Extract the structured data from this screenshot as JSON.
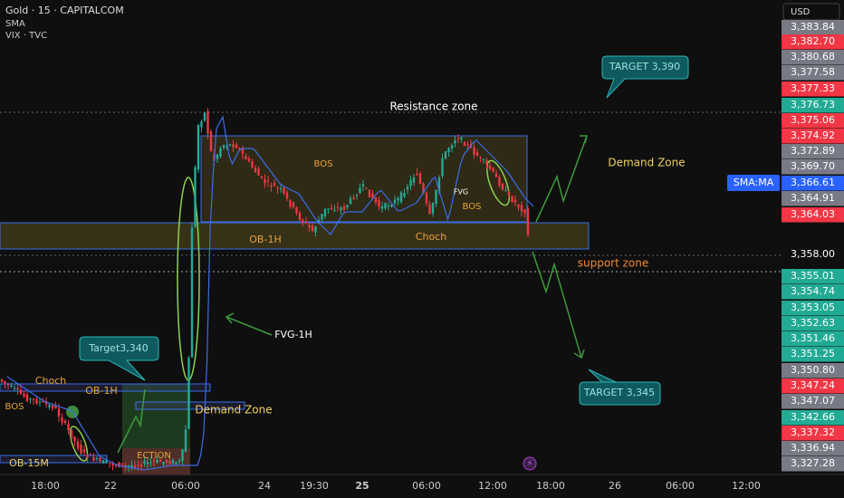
{
  "header": {
    "symbol": "Gold · 15 · CAPITALCOM",
    "indicators": [
      "SMA",
      "VIX · TVC"
    ]
  },
  "annotations": [
    {
      "text": "Resistance zone",
      "color": "#ffffff"
    },
    {
      "text": "BOS",
      "color": "#e8a23a"
    },
    {
      "text": "Demand Zone",
      "color": "#f0d060"
    },
    {
      "text": "FVG",
      "color": "#ffffff"
    },
    {
      "text": "BOS",
      "color": "#e8a23a"
    },
    {
      "text": "OB-1H",
      "color": "#e8a23a"
    },
    {
      "text": "Choch",
      "color": "#e8a23a"
    },
    {
      "text": "support zone",
      "color": "#f08a30"
    },
    {
      "text": "FVG-1H",
      "color": "#ffffff"
    },
    {
      "text": "Choch",
      "color": "#e8a23a"
    },
    {
      "text": "OB-1H",
      "color": "#e8a23a"
    },
    {
      "text": "BOS",
      "color": "#e8a23a"
    },
    {
      "text": "Demand Zone",
      "color": "#f0d060"
    },
    {
      "text": "OB-15M",
      "color": "#f0d060"
    },
    {
      "text": "ECTION",
      "color": "#e8a23a"
    }
  ],
  "callouts": [
    "TARGET 3,390",
    "Target3,340",
    "TARGET 3,345"
  ],
  "indicator_tag": "SMA:MA",
  "price_axis": {
    "currency": "USD",
    "labels": [
      {
        "text": "3,383.84",
        "color": "#787b86"
      },
      {
        "text": "3,382.70",
        "color": "#f23645"
      },
      {
        "text": "3,380.68",
        "color": "#787b86"
      },
      {
        "text": "3,377.58",
        "color": "#787b86"
      },
      {
        "text": "3,377.33",
        "color": "#f23645"
      },
      {
        "text": "3,376.73",
        "color": "#22ab94"
      },
      {
        "text": "3,375.06",
        "color": "#f23645"
      },
      {
        "text": "3,374.92",
        "color": "#f23645"
      },
      {
        "text": "3,372.89",
        "color": "#787b86"
      },
      {
        "text": "3,369.70",
        "color": "#787b86"
      },
      {
        "text": "3,366.61",
        "color": "#2962ff"
      },
      {
        "text": "3,364.91",
        "color": "#787b86"
      },
      {
        "text": "3,364.03",
        "color": "#f23645"
      },
      {
        "text": "3,358.00",
        "color": "#0f0f0f"
      },
      {
        "text": "3,355.01",
        "color": "#22ab94"
      },
      {
        "text": "3,354.74",
        "color": "#22ab94"
      },
      {
        "text": "3,353.05",
        "color": "#22ab94"
      },
      {
        "text": "3,352.63",
        "color": "#22ab94"
      },
      {
        "text": "3,351.46",
        "color": "#22ab94"
      },
      {
        "text": "3,351.25",
        "color": "#22ab94"
      },
      {
        "text": "3,350.80",
        "color": "#787b86"
      },
      {
        "text": "3,347.24",
        "color": "#f23645"
      },
      {
        "text": "3,347.07",
        "color": "#787b86"
      },
      {
        "text": "3,342.66",
        "color": "#22ab94"
      },
      {
        "text": "3,337.32",
        "color": "#f23645"
      },
      {
        "text": "3,336.94",
        "color": "#787b86"
      },
      {
        "text": "3,327.28",
        "color": "#787b86"
      }
    ]
  },
  "time_axis": [
    "18:00",
    "22",
    "06:00",
    "24",
    "19:30",
    "25",
    "06:00",
    "12:00",
    "18:00",
    "26",
    "06:00",
    "12:00"
  ]
}
